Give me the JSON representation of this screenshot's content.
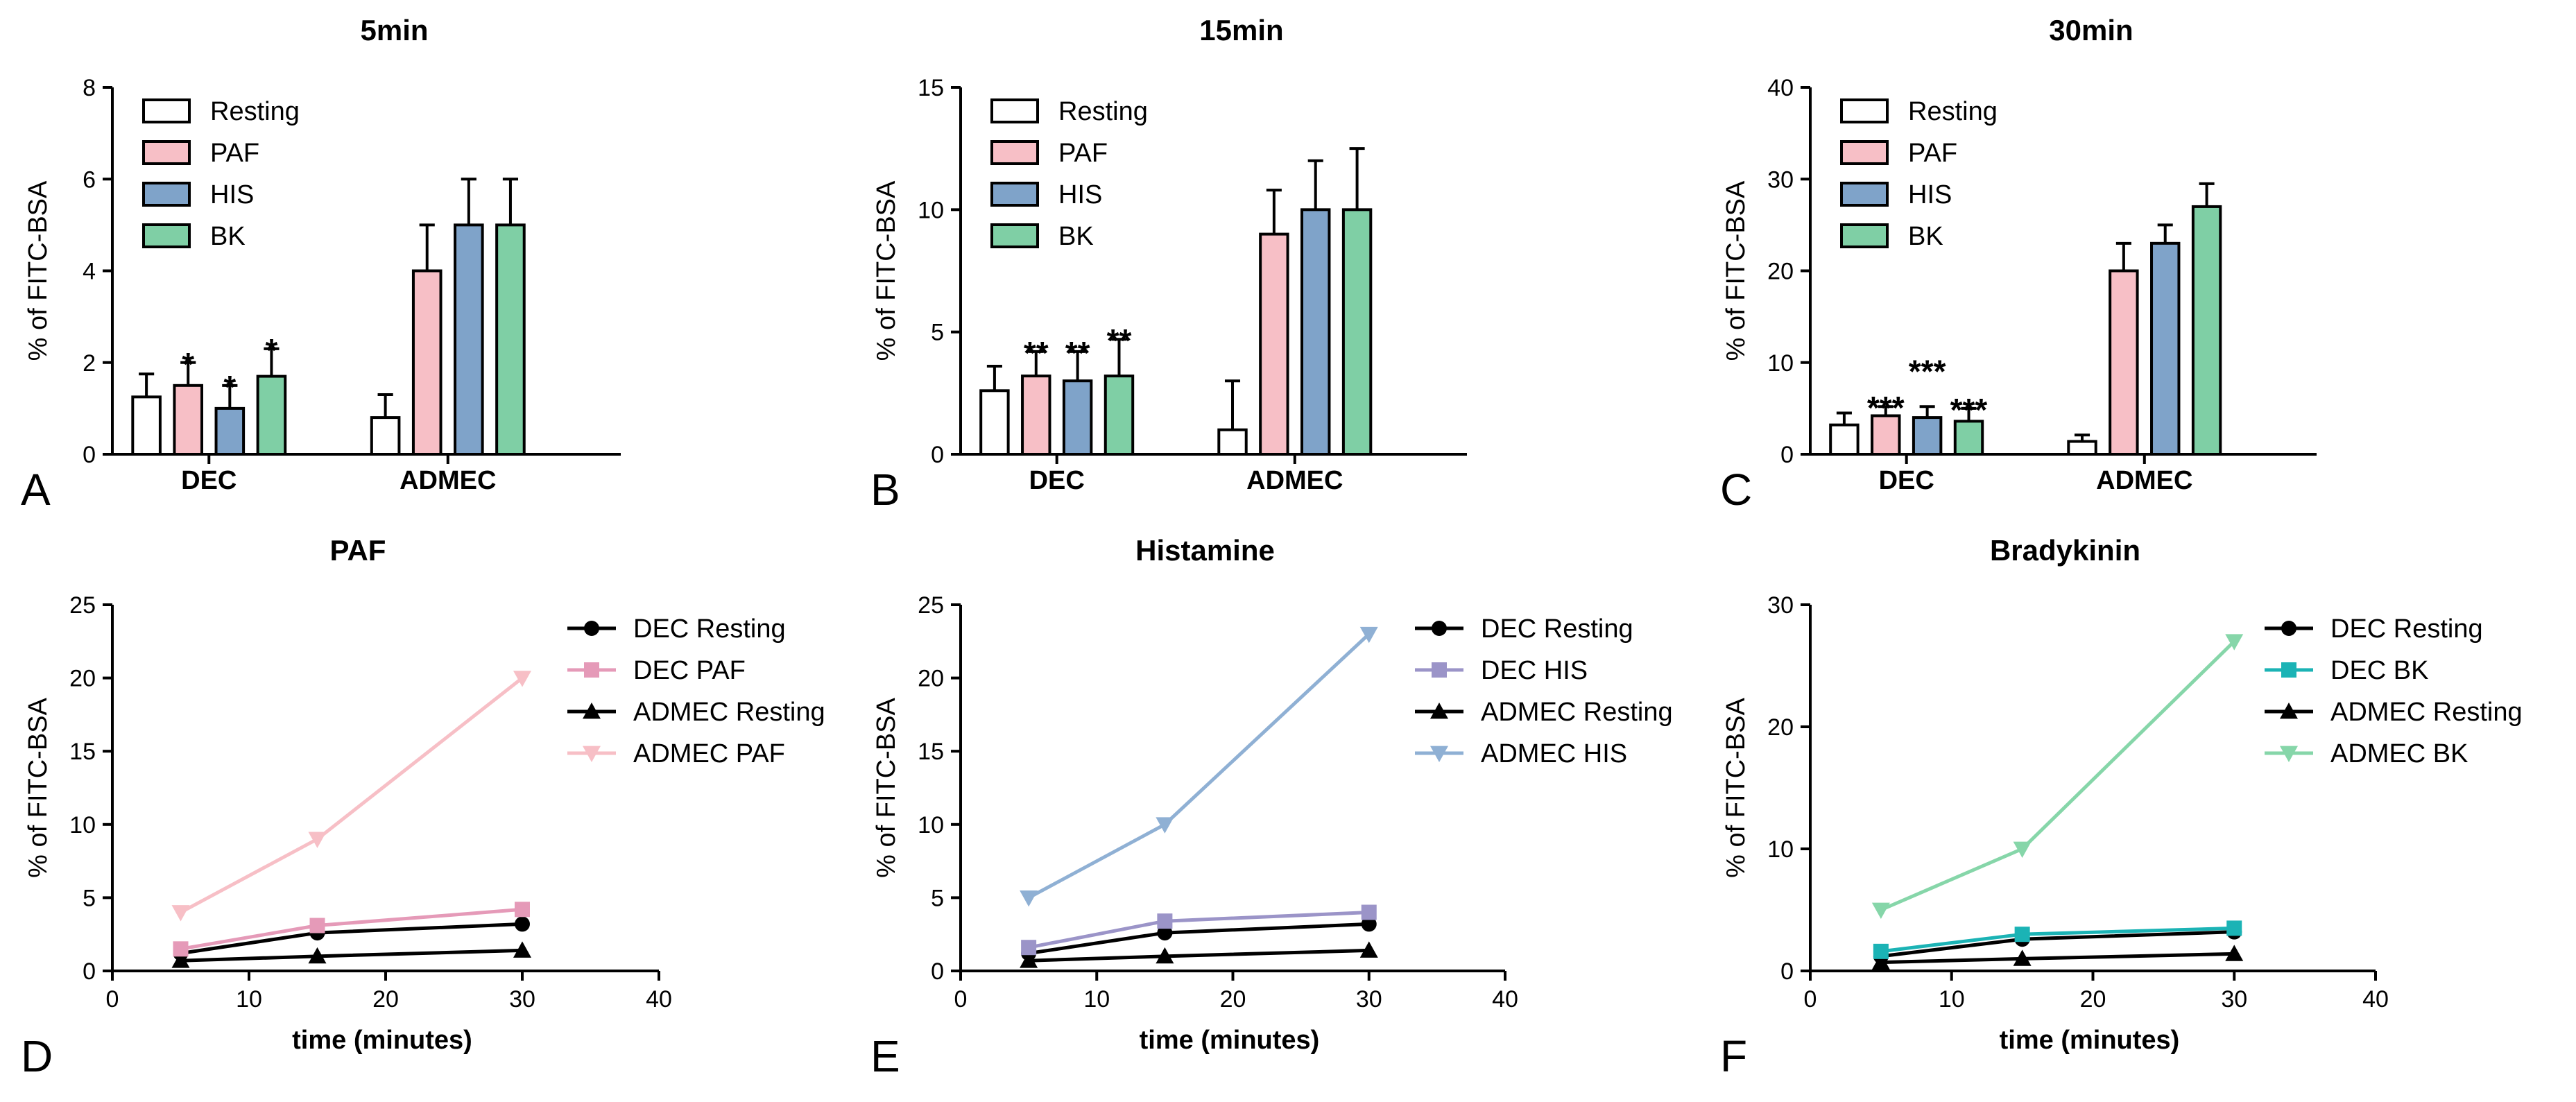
{
  "figure": {
    "panel_letters": [
      "A",
      "B",
      "C",
      "D",
      "E",
      "F"
    ]
  },
  "colors": {
    "resting": "#ffffff",
    "paf": "#f7bfc6",
    "his": "#7fa3c9",
    "bk": "#7fcfa5",
    "black": "#000000",
    "paf_dec_line": "#e59ab8",
    "his_dec_line": "#9b94c8",
    "bk_dec_line": "#1bb3b5",
    "paf_admec_line": "#f7bfc6",
    "his_admec_line": "#8fb0d4",
    "bk_admec_line": "#86d6a9"
  },
  "chart_data": [
    {
      "panel": "A",
      "type": "bar",
      "title": "5min",
      "ylabel": "% of FITC-BSA",
      "xlabel": "",
      "ylim": [
        0,
        8
      ],
      "yticks": [
        0,
        2,
        4,
        6,
        8
      ],
      "groups": [
        "DEC",
        "ADMEC"
      ],
      "series": [
        {
          "name": "Resting",
          "color_key": "resting",
          "values": [
            1.25,
            0.8
          ],
          "errors": [
            0.5,
            0.5
          ]
        },
        {
          "name": "PAF",
          "color_key": "paf",
          "values": [
            1.5,
            4.0
          ],
          "errors": [
            0.5,
            1.0
          ]
        },
        {
          "name": "HIS",
          "color_key": "his",
          "values": [
            1.0,
            5.0
          ],
          "errors": [
            0.5,
            1.0
          ]
        },
        {
          "name": "BK",
          "color_key": "bk",
          "values": [
            1.7,
            5.0
          ],
          "errors": [
            0.6,
            1.0
          ]
        }
      ],
      "annotations": [
        {
          "group": 0,
          "series": 1,
          "text": "*"
        },
        {
          "group": 0,
          "series": 2,
          "text": "*"
        },
        {
          "group": 0,
          "series": 3,
          "text": "*"
        }
      ],
      "legend_position": "top-left"
    },
    {
      "panel": "B",
      "type": "bar",
      "title": "15min",
      "ylabel": "% of FITC-BSA",
      "xlabel": "",
      "ylim": [
        0,
        15
      ],
      "yticks": [
        0,
        5,
        10,
        15
      ],
      "groups": [
        "DEC",
        "ADMEC"
      ],
      "series": [
        {
          "name": "Resting",
          "color_key": "resting",
          "values": [
            2.6,
            1.0
          ],
          "errors": [
            1.0,
            2.0
          ]
        },
        {
          "name": "PAF",
          "color_key": "paf",
          "values": [
            3.2,
            9.0
          ],
          "errors": [
            1.0,
            1.8
          ]
        },
        {
          "name": "HIS",
          "color_key": "his",
          "values": [
            3.0,
            10.0
          ],
          "errors": [
            1.2,
            2.0
          ]
        },
        {
          "name": "BK",
          "color_key": "bk",
          "values": [
            3.2,
            10.0
          ],
          "errors": [
            1.5,
            2.5
          ]
        }
      ],
      "annotations": [
        {
          "group": 0,
          "series": 1,
          "text": "**"
        },
        {
          "group": 0,
          "series": 2,
          "text": "**"
        },
        {
          "group": 0,
          "series": 3,
          "text": "**"
        }
      ],
      "legend_position": "top-left"
    },
    {
      "panel": "C",
      "type": "bar",
      "title": "30min",
      "ylabel": "% of FITC-BSA",
      "xlabel": "",
      "ylim": [
        0,
        40
      ],
      "yticks": [
        0,
        10,
        20,
        30,
        40
      ],
      "groups": [
        "DEC",
        "ADMEC"
      ],
      "series": [
        {
          "name": "Resting",
          "color_key": "resting",
          "values": [
            3.2,
            1.4
          ],
          "errors": [
            1.3,
            0.7
          ]
        },
        {
          "name": "PAF",
          "color_key": "paf",
          "values": [
            4.2,
            20.0
          ],
          "errors": [
            1.0,
            3.0
          ]
        },
        {
          "name": "HIS",
          "color_key": "his",
          "values": [
            4.0,
            23.0
          ],
          "errors": [
            1.2,
            2.0
          ]
        },
        {
          "name": "BK",
          "color_key": "bk",
          "values": [
            3.6,
            27.0
          ],
          "errors": [
            1.4,
            2.5
          ]
        }
      ],
      "annotations": [
        {
          "group": 0,
          "series": 1,
          "text": "***",
          "raise": 0
        },
        {
          "group": 0,
          "series": 2,
          "text": "***",
          "raise": 4
        },
        {
          "group": 0,
          "series": 3,
          "text": "***",
          "raise": 0
        }
      ],
      "legend_position": "top-left"
    },
    {
      "panel": "D",
      "type": "line",
      "title": "PAF",
      "xlabel": "time (minutes)",
      "ylabel": "% of FITC-BSA",
      "xlim": [
        0,
        40
      ],
      "xticks": [
        0,
        10,
        20,
        30,
        40
      ],
      "ylim": [
        0,
        25
      ],
      "yticks": [
        0,
        5,
        10,
        15,
        20,
        25
      ],
      "x": [
        5,
        15,
        30
      ],
      "series": [
        {
          "name": "DEC Resting",
          "values": [
            1.2,
            2.6,
            3.2
          ],
          "marker": "circle",
          "color_key": "black"
        },
        {
          "name": "DEC PAF",
          "values": [
            1.5,
            3.1,
            4.2
          ],
          "marker": "square",
          "color_key": "paf_dec_line"
        },
        {
          "name": "ADMEC Resting",
          "values": [
            0.7,
            1.0,
            1.4
          ],
          "marker": "triangle-up",
          "color_key": "black"
        },
        {
          "name": "ADMEC PAF",
          "values": [
            4.0,
            9.0,
            20.0
          ],
          "marker": "triangle-down",
          "color_key": "paf_admec_line"
        }
      ],
      "legend_position": "top-right"
    },
    {
      "panel": "E",
      "type": "line",
      "title": "Histamine",
      "xlabel": "time (minutes)",
      "ylabel": "% of FITC-BSA",
      "xlim": [
        0,
        40
      ],
      "xticks": [
        0,
        10,
        20,
        30,
        40
      ],
      "ylim": [
        0,
        25
      ],
      "yticks": [
        0,
        5,
        10,
        15,
        20,
        25
      ],
      "x": [
        5,
        15,
        30
      ],
      "series": [
        {
          "name": "DEC Resting",
          "values": [
            1.2,
            2.6,
            3.2
          ],
          "marker": "circle",
          "color_key": "black"
        },
        {
          "name": "DEC HIS",
          "values": [
            1.6,
            3.4,
            4.0
          ],
          "marker": "square",
          "color_key": "his_dec_line"
        },
        {
          "name": "ADMEC Resting",
          "values": [
            0.7,
            1.0,
            1.4
          ],
          "marker": "triangle-up",
          "color_key": "black"
        },
        {
          "name": "ADMEC HIS",
          "values": [
            5.0,
            10.0,
            23.0
          ],
          "marker": "triangle-down",
          "color_key": "his_admec_line"
        }
      ],
      "legend_position": "top-right"
    },
    {
      "panel": "F",
      "type": "line",
      "title": "Bradykinin",
      "xlabel": "time (minutes)",
      "ylabel": "% of FITC-BSA",
      "xlim": [
        0,
        40
      ],
      "xticks": [
        0,
        10,
        20,
        30,
        40
      ],
      "ylim": [
        0,
        30
      ],
      "yticks": [
        0,
        10,
        20,
        30
      ],
      "x": [
        5,
        15,
        30
      ],
      "series": [
        {
          "name": "DEC Resting",
          "values": [
            1.2,
            2.6,
            3.2
          ],
          "marker": "circle",
          "color_key": "black"
        },
        {
          "name": "DEC BK",
          "values": [
            1.6,
            3.0,
            3.5
          ],
          "marker": "square",
          "color_key": "bk_dec_line"
        },
        {
          "name": "ADMEC Resting",
          "values": [
            0.7,
            1.0,
            1.4
          ],
          "marker": "triangle-up",
          "color_key": "black"
        },
        {
          "name": "ADMEC BK",
          "values": [
            5.0,
            10.0,
            27.0
          ],
          "marker": "triangle-down",
          "color_key": "bk_admec_line"
        }
      ],
      "legend_position": "top-right"
    }
  ]
}
